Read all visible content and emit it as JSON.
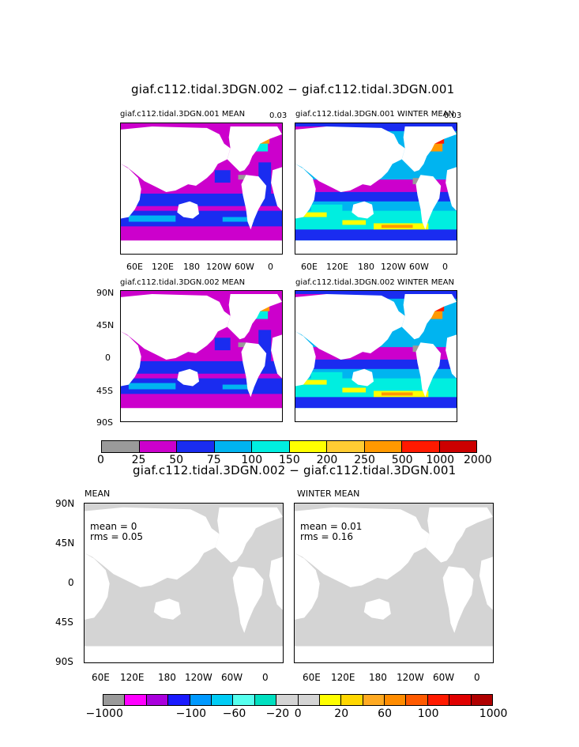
{
  "figure": {
    "top_title": "giaf.c112.tidal.3DGN.002 − giaf.c112.tidal.3DGN.001",
    "bottom_title": "giaf.c112.tidal.3DGN.002 − giaf.c112.tidal.3DGN.001"
  },
  "top_panels": [
    {
      "title": "giaf.c112.tidal.3DGN.001 MEAN",
      "corner": "0.03"
    },
    {
      "title": "giaf.c112.tidal.3DGN.001 WINTER MEAN",
      "corner": "0.03"
    },
    {
      "title": "giaf.c112.tidal.3DGN.002 MEAN",
      "corner": ""
    },
    {
      "title": "giaf.c112.tidal.3DGN.002 WINTER MEAN",
      "corner": ""
    }
  ],
  "top_axes": {
    "lat_ticks": [
      "90N",
      "45N",
      "0",
      "45S",
      "90S"
    ],
    "lon_ticks": [
      "60E",
      "120E",
      "180",
      "120W",
      "60W",
      "0"
    ]
  },
  "top_colorbar": {
    "labels": [
      "0",
      "25",
      "50",
      "75",
      "100",
      "150",
      "200",
      "250",
      "500",
      "1000",
      "2000"
    ],
    "colors": [
      "#9a9a9a",
      "#cc00cc",
      "#1a2cf0",
      "#00b4f0",
      "#00eee0",
      "#ffff00",
      "#ffcc33",
      "#ff9900",
      "#ff1a00",
      "#cc0000"
    ]
  },
  "bottom_panels": [
    {
      "title": "MEAN",
      "stat1": "mean = 0",
      "stat2": "rms = 0.05"
    },
    {
      "title": "WINTER MEAN",
      "stat1": "mean = 0.01",
      "stat2": "rms = 0.16"
    }
  ],
  "bottom_axes": {
    "lat_ticks": [
      "90N",
      "45N",
      "0",
      "45S",
      "90S"
    ],
    "lon_ticks": [
      "60E",
      "120E",
      "180",
      "120W",
      "60W",
      "0"
    ]
  },
  "bottom_colorbar": {
    "labels": [
      "−1000",
      "−100",
      "−60",
      "−20",
      "0",
      "20",
      "60",
      "100",
      "1000"
    ],
    "colors": [
      "#9a9a9a",
      "#ff00ff",
      "#aa00dd",
      "#1a1aff",
      "#0099ff",
      "#00ccf5",
      "#55ffee",
      "#00e0c0",
      "#d4d4d4",
      "#d4d4d4",
      "#ffff00",
      "#ffd700",
      "#ffaa22",
      "#ff8c00",
      "#ff5a00",
      "#ff1a00",
      "#e00000",
      "#b00000"
    ]
  },
  "palette": {
    "land": "#ffffff",
    "diff_fill": "#d4d4d4",
    "purple": "#cc00cc",
    "blue": "#1a2cf0",
    "lightblue": "#00b4f0",
    "cyan": "#00eee0",
    "yellow": "#ffff00",
    "orange": "#ff9900",
    "red": "#ff1a00",
    "gray": "#9a9a9a"
  }
}
